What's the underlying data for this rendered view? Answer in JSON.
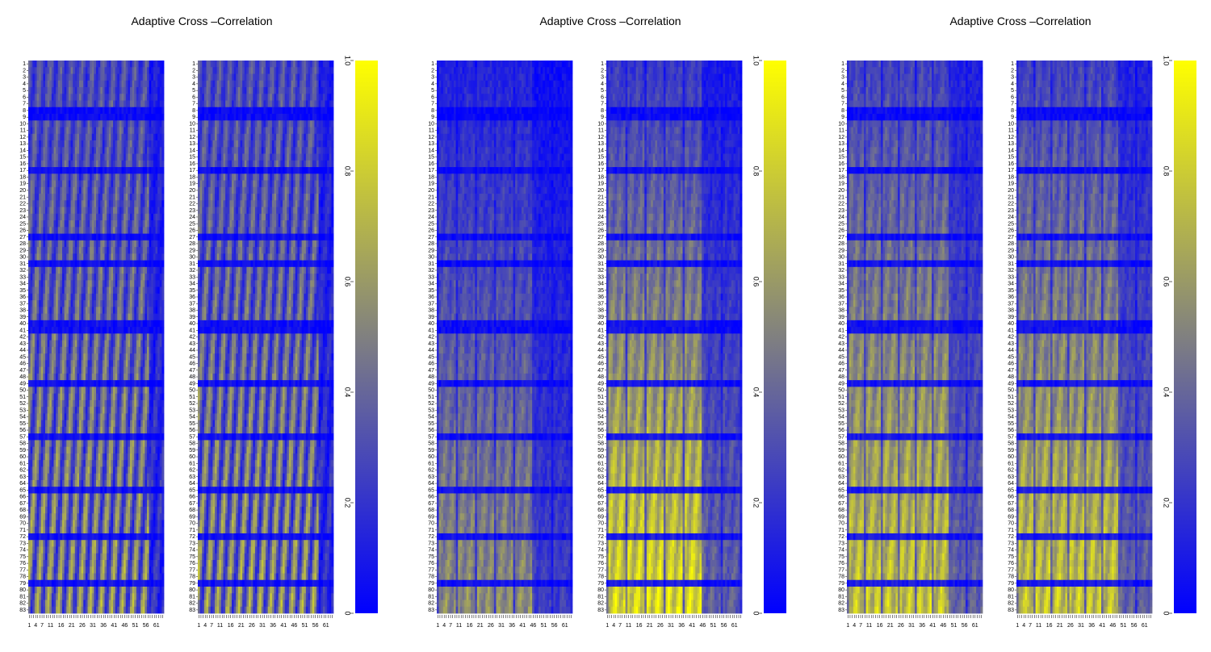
{
  "figure": {
    "panels": [
      {
        "title": "Adaptive Cross   –Correlation"
      },
      {
        "title": "Adaptive Cross   –Correlation"
      },
      {
        "title": "Adaptive Cross   –Correlation"
      }
    ]
  },
  "chart_data": [
    {
      "type": "heatmap",
      "title": "Adaptive Cross   –Correlation",
      "subplots": 2,
      "rows": 83,
      "cols": 64,
      "row_labels_first_last": [
        1,
        83
      ],
      "x_tick_labels": [
        "1",
        "4",
        "7",
        "11",
        "16",
        "21",
        "26",
        "31",
        "36",
        "41",
        "46",
        "51",
        "56",
        "61"
      ],
      "colorbar": {
        "range": [
          0,
          1
        ],
        "ticks": [
          "0",
          "0.2",
          "0.4",
          "0.6",
          "0.8",
          "1.0"
        ],
        "low_color": "#0000ff",
        "mid_color": "#808080",
        "high_color": "#ffff00"
      },
      "pattern": "diagonal-bands",
      "mean_intensity": 0.45
    },
    {
      "type": "heatmap",
      "title": "Adaptive Cross   –Correlation",
      "subplots": 2,
      "rows": 83,
      "cols": 64,
      "row_labels_first_last": [
        1,
        83
      ],
      "x_tick_labels": [
        "1",
        "4",
        "7",
        "11",
        "16",
        "21",
        "26",
        "31",
        "36",
        "41",
        "46",
        "51",
        "56",
        "61"
      ],
      "colorbar": {
        "range": [
          0,
          1
        ],
        "ticks": [
          "0",
          "0.2",
          "0.4",
          "0.6",
          "0.8",
          "1.0"
        ],
        "low_color": "#0000ff",
        "mid_color": "#808080",
        "high_color": "#ffff00"
      },
      "pattern": "bright-lower-block",
      "mean_intensity": 0.55
    },
    {
      "type": "heatmap",
      "title": "Adaptive Cross   –Correlation",
      "subplots": 2,
      "rows": 83,
      "cols": 64,
      "row_labels_first_last": [
        1,
        83
      ],
      "x_tick_labels": [
        "1",
        "4",
        "7",
        "11",
        "16",
        "21",
        "26",
        "31",
        "36",
        "41",
        "46",
        "51",
        "56",
        "61"
      ],
      "colorbar": {
        "range": [
          0,
          1
        ],
        "ticks": [
          "0",
          "0.2",
          "0.4",
          "0.6",
          "0.8",
          "1.0"
        ],
        "low_color": "#0000ff",
        "mid_color": "#808080",
        "high_color": "#ffff00"
      },
      "pattern": "moderate-lower-block",
      "mean_intensity": 0.5
    }
  ]
}
